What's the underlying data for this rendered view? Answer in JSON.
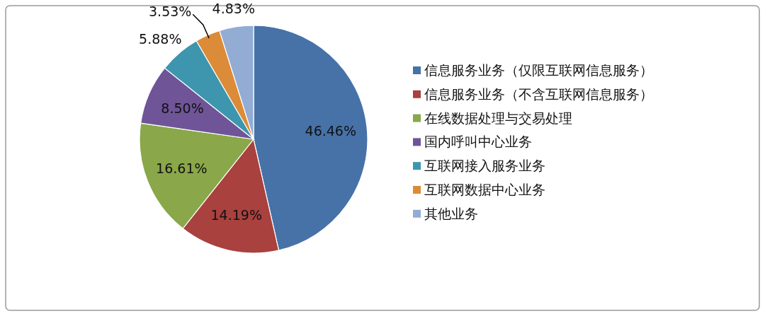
{
  "chart_data": {
    "type": "pie",
    "categories": [
      "信息服务业务（仅限互联网信息服务）",
      "信息服务业务（不含互联网信息服务）",
      "在线数据处理与交易处理",
      "国内呼叫中心业务",
      "互联网接入服务业务",
      "互联网数据中心业务",
      "其他业务"
    ],
    "values": [
      46.46,
      14.19,
      16.61,
      8.5,
      5.88,
      3.53,
      4.83
    ],
    "value_labels": [
      "46.46%",
      "14.19%",
      "16.61%",
      "8.50%",
      "5.88%",
      "3.53%",
      "4.83%"
    ],
    "colors": [
      "#4672a8",
      "#a9413e",
      "#8aa74a",
      "#6f5597",
      "#3d96ae",
      "#dc8b38",
      "#93acd4"
    ],
    "legend": "right"
  }
}
